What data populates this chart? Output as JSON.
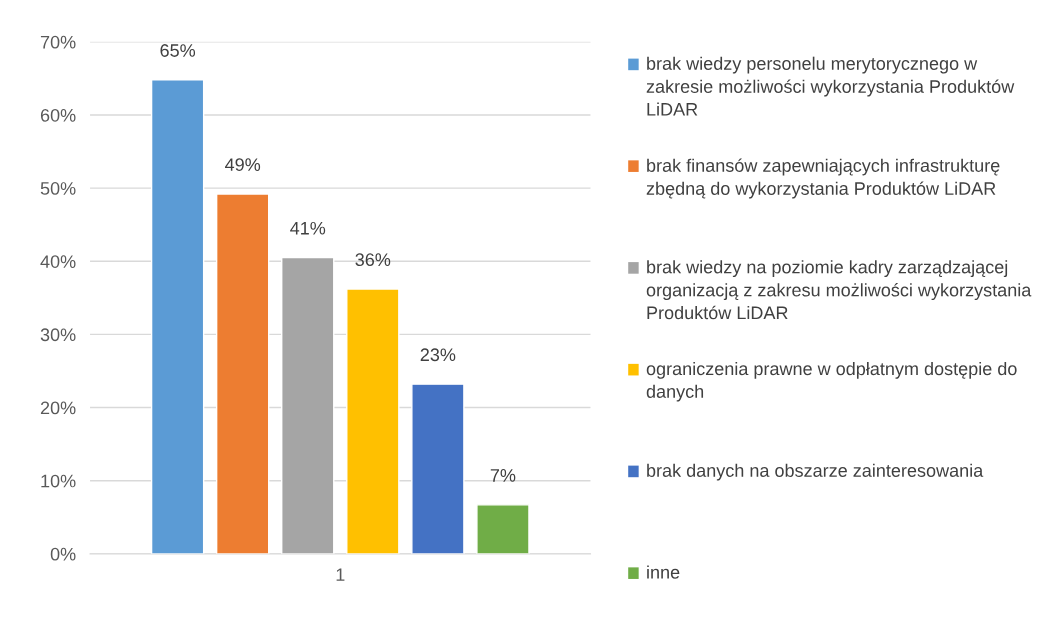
{
  "chart_data": {
    "type": "bar",
    "categories": [
      "1"
    ],
    "series": [
      {
        "name": "brak wiedzy personelu merytorycznego w zakresie możliwości wykorzystania Produktów LiDAR",
        "color": "#5b9bd5",
        "values": [
          64.8
        ],
        "value_labels": [
          "65%"
        ]
      },
      {
        "name": "brak finansów zapewniających infrastrukturę zbędną do wykorzystania Produktów LiDAR",
        "color": "#ed7d31",
        "values": [
          49.2
        ],
        "value_labels": [
          "49%"
        ]
      },
      {
        "name": "brak wiedzy na poziomie kadry zarządzającej organizacją z zakresu możliwości wykorzystania Produktów LiDAR",
        "color": "#a5a5a5",
        "values": [
          40.5
        ],
        "value_labels": [
          "41%"
        ]
      },
      {
        "name": "ograniczenia prawne w odpłatnym dostępie do danych",
        "color": "#ffc000",
        "values": [
          36.2
        ],
        "value_labels": [
          "36%"
        ]
      },
      {
        "name": "brak danych na obszarze zainteresowania",
        "color": "#4472c4",
        "values": [
          23.2
        ],
        "value_labels": [
          "23%"
        ]
      },
      {
        "name": "inne",
        "color": "#70ad47",
        "values": [
          6.7
        ],
        "value_labels": [
          "7%"
        ]
      }
    ],
    "ylim": [
      0,
      70
    ],
    "yticks": [
      {
        "value": 0,
        "label": "0%"
      },
      {
        "value": 10,
        "label": "10%"
      },
      {
        "value": 20,
        "label": "20%"
      },
      {
        "value": 30,
        "label": "30%"
      },
      {
        "value": 40,
        "label": "40%"
      },
      {
        "value": 50,
        "label": "50%"
      },
      {
        "value": 60,
        "label": "60%"
      },
      {
        "value": 70,
        "label": "70%"
      }
    ],
    "grid": "y",
    "legend": "right"
  }
}
